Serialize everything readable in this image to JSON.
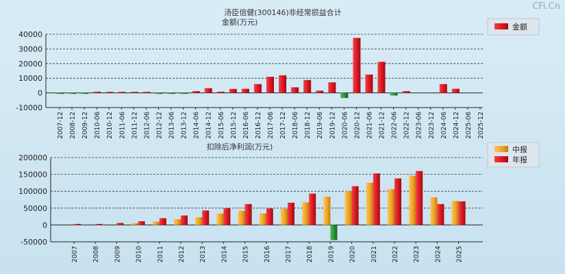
{
  "watermark": "CFi.Cn",
  "colors": {
    "red": "#e8202a",
    "red_dark": "#b3101a",
    "green": "#2e9a3a",
    "green_dark": "#1d6e27",
    "orange": "#f5a623",
    "orange_dark": "#c97f10"
  },
  "chart_data": [
    {
      "type": "bar",
      "title": "汤臣倍健(300146)非经常损益合计",
      "subtitle": "金额(万元)",
      "ylim": [
        -10000,
        40000
      ],
      "yticks": [
        "40000",
        "30000",
        "20000",
        "10000",
        "0",
        "-10000"
      ],
      "legend": [
        "金额"
      ],
      "categories": [
        "2007-12",
        "2008-12",
        "2009-12",
        "2010-06",
        "2010-12",
        "2011-06",
        "2011-12",
        "2012-06",
        "2012-12",
        "2013-06",
        "2013-12",
        "2014-06",
        "2014-12",
        "2015-06",
        "2015-12",
        "2016-06",
        "2016-12",
        "2017-06",
        "2017-12",
        "2018-06",
        "2018-12",
        "2019-06",
        "2019-12",
        "2020-06",
        "2020-12",
        "2021-06",
        "2021-12",
        "2022-06",
        "2022-12",
        "2023-06",
        "2023-12",
        "2024-06",
        "2024-12",
        "2025-06",
        "2025-12"
      ],
      "series": [
        {
          "name": "金额",
          "values": [
            -200,
            -300,
            -300,
            800,
            700,
            600,
            700,
            700,
            -300,
            -300,
            -200,
            1200,
            3200,
            800,
            2700,
            2800,
            6000,
            11000,
            12000,
            3800,
            8800,
            1500,
            7200,
            -3500,
            37500,
            12500,
            21200,
            -1800,
            1200,
            0,
            0,
            6000,
            2800,
            0,
            0
          ]
        }
      ]
    },
    {
      "type": "bar",
      "title": "扣除后净利润(万元)",
      "ylim": [
        -50000,
        200000
      ],
      "yticks": [
        "200000",
        "150000",
        "100000",
        "50000",
        "0",
        "-50000"
      ],
      "legend": [
        "中报",
        "年报"
      ],
      "categories": [
        "2007",
        "2008",
        "2009",
        "2010",
        "2011",
        "2012",
        "2013",
        "2014",
        "2015",
        "2016",
        "2017",
        "2018",
        "2019",
        "2020",
        "2021",
        "2022",
        "2023",
        "2024",
        "2025"
      ],
      "series": [
        {
          "name": "中报",
          "values": [
            null,
            null,
            null,
            5000,
            10000,
            17000,
            23000,
            34000,
            42000,
            34000,
            48000,
            67000,
            84000,
            100000,
            125000,
            106000,
            146000,
            82000,
            71000
          ]
        },
        {
          "name": "年报",
          "values": [
            3000,
            3000,
            6000,
            11000,
            20000,
            28000,
            43000,
            50000,
            62000,
            49000,
            66000,
            93000,
            -45000,
            115000,
            153000,
            138000,
            160000,
            62000,
            70000
          ]
        }
      ]
    }
  ]
}
